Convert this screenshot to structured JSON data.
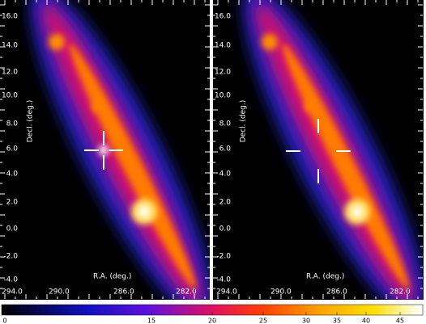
{
  "panels": [
    {
      "y_label": "Decl. (deg.)",
      "x_label": "R.A. (deg.)",
      "y_ticks": [
        "16.0",
        "14.0",
        "12.0",
        "10.0",
        "8.0",
        "6.0",
        "4.0",
        "2.0",
        "0.0",
        "-2.0",
        "-4.0"
      ],
      "x_ticks": [
        "294.0",
        "290.0",
        "286.0",
        "282.0"
      ]
    },
    {
      "y_label": "Decl. (deg.)",
      "x_label": "R.A. (deg.)",
      "y_ticks": [
        "16.0",
        "14.0",
        "12.0",
        "10.0",
        "8.0",
        "6.0",
        "4.0",
        "2.0",
        "0.0",
        "-2.0",
        "-4.0"
      ],
      "x_ticks": [
        "294.0",
        "290.0",
        "286.0",
        "282.0"
      ]
    }
  ],
  "colorbar": {
    "ticks": [
      "0",
      "15",
      "20",
      "25",
      "30",
      "35",
      "40",
      "45"
    ]
  }
}
